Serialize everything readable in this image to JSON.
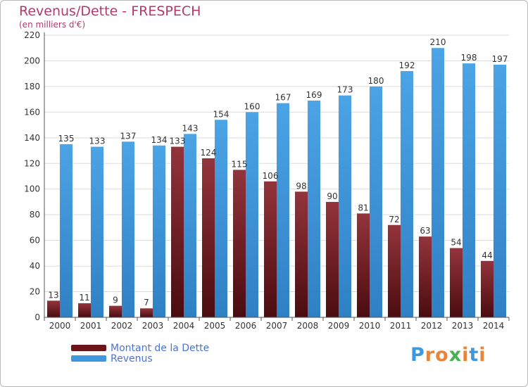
{
  "header": {
    "title": "Revenus/Dette - FRESPECH",
    "subtitle": "(en milliers d'€)"
  },
  "legend": {
    "items": [
      {
        "label": "Montant de la Dette",
        "color": "#7a1c22"
      },
      {
        "label": "Revenus",
        "color": "#3f98dd"
      }
    ]
  },
  "logo": {
    "text": "Proxiti",
    "colors": [
      "#3f98dd",
      "#e6863a",
      "#e6863a",
      "#4caf50",
      "#e6863a",
      "#3f98dd",
      "#e6863a"
    ]
  },
  "chart_data": {
    "type": "bar",
    "categories": [
      "2000",
      "2001",
      "2002",
      "2003",
      "2004",
      "2005",
      "2006",
      "2007",
      "2008",
      "2009",
      "2010",
      "2011",
      "2012",
      "2013",
      "2014"
    ],
    "series": [
      {
        "name": "Montant de la Dette",
        "color": "#7a1c22",
        "values": [
          13,
          11,
          9,
          7,
          133,
          124,
          115,
          106,
          98,
          90,
          81,
          72,
          63,
          54,
          44
        ]
      },
      {
        "name": "Revenus",
        "color": "#3f98dd",
        "values": [
          135,
          133,
          137,
          134,
          143,
          154,
          160,
          167,
          169,
          173,
          180,
          192,
          210,
          198,
          197
        ]
      }
    ],
    "title": "Revenus/Dette - FRESPECH",
    "ylabel": "(en milliers d'€)",
    "xlabel": "",
    "ylim": [
      0,
      220
    ],
    "yticks": [
      0,
      20,
      40,
      60,
      80,
      100,
      120,
      140,
      160,
      180,
      200,
      220
    ],
    "grid": true,
    "legend_position": "bottom-left"
  }
}
